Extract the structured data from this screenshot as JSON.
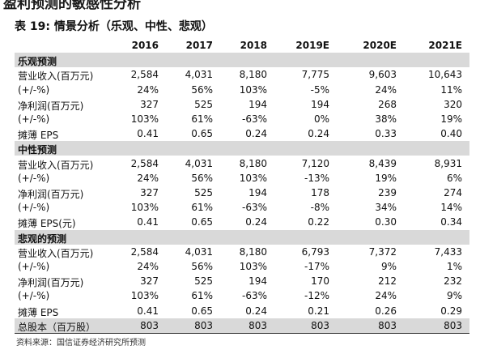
{
  "heading": "盈利预测的敏感性分析",
  "caption": "表 19:  情景分析（乐观、中性、悲观）",
  "table": {
    "header": [
      "2016",
      "2017",
      "2018",
      "2019E",
      "2020E",
      "2021E"
    ],
    "sections": [
      {
        "title": "乐观预测",
        "rows": [
          [
            "营业收入(百万元)",
            "2,584",
            "4,031",
            "8,180",
            "7,775",
            "9,603",
            "10,643"
          ],
          [
            "(+/-%)",
            "24%",
            "56%",
            "103%",
            "-5%",
            "24%",
            "11%"
          ],
          [
            "净利润(百万元)",
            "327",
            "525",
            "194",
            "194",
            "268",
            "320"
          ],
          [
            "(+/-%)",
            "103%",
            "61%",
            "-63%",
            "0%",
            "38%",
            "19%"
          ],
          [
            "摊薄 EPS",
            "0.41",
            "0.65",
            "0.24",
            "0.24",
            "0.33",
            "0.40"
          ]
        ]
      },
      {
        "title": "中性预测",
        "rows": [
          [
            "营业收入(百万元)",
            "2,584",
            "4,031",
            "8,180",
            "7,120",
            "8,439",
            "8,931"
          ],
          [
            "(+/-%)",
            "24%",
            "56%",
            "103%",
            "-13%",
            "19%",
            "6%"
          ],
          [
            "净利润(百万元)",
            "327",
            "525",
            "194",
            "178",
            "239",
            "274"
          ],
          [
            "(+/-%)",
            "103%",
            "61%",
            "-63%",
            "-8%",
            "34%",
            "14%"
          ],
          [
            "摊薄 EPS(元)",
            "0.41",
            "0.65",
            "0.24",
            "0.22",
            "0.30",
            "0.34"
          ]
        ]
      },
      {
        "title": "悲观的预测",
        "rows": [
          [
            "营业收入(百万元)",
            "2,584",
            "4,031",
            "8,180",
            "6,793",
            "7,372",
            "7,433"
          ],
          [
            "(+/-%)",
            "24%",
            "56%",
            "103%",
            "-17%",
            "9%",
            "1%"
          ],
          [
            "净利润(百万元)",
            "327",
            "525",
            "194",
            "170",
            "212",
            "232"
          ],
          [
            "(+/-%)",
            "103%",
            "61%",
            "-63%",
            "-12%",
            "24%",
            "9%"
          ],
          [
            "摊薄 EPS",
            "0.41",
            "0.65",
            "0.24",
            "0.21",
            "0.26",
            "0.29"
          ]
        ]
      }
    ],
    "total": [
      "总股本（百万股）",
      "803",
      "803",
      "803",
      "803",
      "803",
      "803"
    ]
  },
  "source": "资料来源：国信证券经济研究所预测"
}
